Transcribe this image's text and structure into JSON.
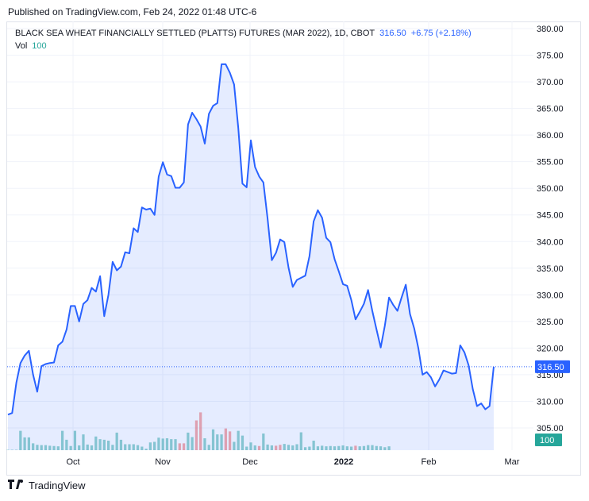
{
  "header": {
    "published": "Published on TradingView.com, Feb 24, 2022 01:48 UTC-6"
  },
  "legend": {
    "symbol": "BLACK SEA WHEAT FINANCIALLY SETTLED (PLATTS) FUTURES (MAR 2022), 1D, CBOT",
    "price": "316.50",
    "change": "+6.75 (+2.18%)",
    "vol_label": "Vol",
    "vol_value": "100"
  },
  "footer": {
    "brand": "TradingView"
  },
  "colors": {
    "line": "#2962ff",
    "area": "#2962ff",
    "vol_up": "#26a69a",
    "vol_down": "#ef5350",
    "grid": "#f0f3fa"
  },
  "chart_data": {
    "type": "line",
    "y_ticks": [
      "380.00",
      "375.00",
      "370.00",
      "365.00",
      "360.00",
      "355.00",
      "350.00",
      "345.00",
      "340.00",
      "335.00",
      "330.00",
      "325.00",
      "320.00",
      "315.00",
      "310.00",
      "305.00"
    ],
    "x_ticks": [
      "Oct",
      "Nov",
      "Dec",
      "2022",
      "Feb",
      "Mar"
    ],
    "ylim": [
      302.5,
      381.0
    ],
    "last_price_label": "316.50",
    "last_volume_label": "100",
    "price_series": [
      307.5,
      307.8,
      313.5,
      317.2,
      318.6,
      319.5,
      315.0,
      311.8,
      316.6,
      317.0,
      317.2,
      317.3,
      320.5,
      321.2,
      323.5,
      327.9,
      327.9,
      325.0,
      328.3,
      329.0,
      331.3,
      330.6,
      333.5,
      326.0,
      330.0,
      336.2,
      334.6,
      335.3,
      338.0,
      337.8,
      342.5,
      341.8,
      346.4,
      346.0,
      346.2,
      345.0,
      352.2,
      354.9,
      352.6,
      352.3,
      350.1,
      350.1,
      351.1,
      362.0,
      364.2,
      363.0,
      361.6,
      358.4,
      364.0,
      365.5,
      366.0,
      373.3,
      373.3,
      371.7,
      369.5,
      361.3,
      350.9,
      350.2,
      359.0,
      354.0,
      352.2,
      351.1,
      344.3,
      336.5,
      337.9,
      340.4,
      339.9,
      335.1,
      331.5,
      332.8,
      333.2,
      333.6,
      337.3,
      343.8,
      345.9,
      344.5,
      340.7,
      339.9,
      336.7,
      334.4,
      332.0,
      331.7,
      329.0,
      325.4,
      326.8,
      328.3,
      330.9,
      327.0,
      323.5,
      320.1,
      324.2,
      329.5,
      328.1,
      327.0,
      329.5,
      331.9,
      326.4,
      323.7,
      320.0,
      315.0,
      315.5,
      314.5,
      312.8,
      314.1,
      315.8,
      315.5,
      315.2,
      315.3,
      320.5,
      319.2,
      316.8,
      312.3,
      309.1,
      309.6,
      308.5,
      309.1,
      316.5
    ],
    "volume_scale_max": 36000,
    "volume_series": [
      [
        4,
        "up"
      ],
      [
        8,
        "up"
      ],
      [
        3,
        "up"
      ],
      [
        6500,
        "up"
      ],
      [
        4300,
        "up"
      ],
      [
        4300,
        "up"
      ],
      [
        2300,
        "up"
      ],
      [
        1800,
        "up"
      ],
      [
        1700,
        "up"
      ],
      [
        1700,
        "up"
      ],
      [
        1500,
        "up"
      ],
      [
        1400,
        "up"
      ],
      [
        1300,
        "up"
      ],
      [
        6500,
        "up"
      ],
      [
        3500,
        "up"
      ],
      [
        1400,
        "up"
      ],
      [
        6500,
        "up"
      ],
      [
        1600,
        "up"
      ],
      [
        5300,
        "up"
      ],
      [
        1900,
        "up"
      ],
      [
        1600,
        "up"
      ],
      [
        4600,
        "up"
      ],
      [
        3700,
        "up"
      ],
      [
        3500,
        "up"
      ],
      [
        3200,
        "up"
      ],
      [
        1800,
        "up"
      ],
      [
        5900,
        "up"
      ],
      [
        3500,
        "up"
      ],
      [
        2000,
        "up"
      ],
      [
        2000,
        "up"
      ],
      [
        2000,
        "up"
      ],
      [
        1700,
        "up"
      ],
      [
        1200,
        "up"
      ],
      [
        500,
        "up"
      ],
      [
        2600,
        "up"
      ],
      [
        2800,
        "up"
      ],
      [
        4200,
        "up"
      ],
      [
        3900,
        "up"
      ],
      [
        4000,
        "up"
      ],
      [
        3700,
        "up"
      ],
      [
        3700,
        "up"
      ],
      [
        2300,
        "up"
      ],
      [
        2300,
        "up"
      ],
      [
        5900,
        "up"
      ],
      [
        4400,
        "up"
      ],
      [
        10000,
        "up"
      ],
      [
        12700,
        "up"
      ],
      [
        4000,
        "up"
      ],
      [
        1800,
        "up"
      ],
      [
        7000,
        "up"
      ],
      [
        5300,
        "up"
      ],
      [
        5300,
        "up"
      ],
      [
        7300,
        "up"
      ],
      [
        6300,
        "up"
      ],
      [
        2800,
        "up"
      ],
      [
        6500,
        "up"
      ],
      [
        4900,
        "up"
      ],
      [
        1200,
        "up"
      ],
      [
        2600,
        "up"
      ],
      [
        1600,
        "up"
      ],
      [
        1400,
        "up"
      ],
      [
        5600,
        "up"
      ],
      [
        1900,
        "up"
      ],
      [
        1600,
        "up"
      ],
      [
        1500,
        "up"
      ],
      [
        1800,
        "up"
      ],
      [
        2100,
        "up"
      ],
      [
        1800,
        "up"
      ],
      [
        1600,
        "up"
      ],
      [
        2000,
        "up"
      ],
      [
        6000,
        "up"
      ],
      [
        1000,
        "up"
      ],
      [
        1200,
        "up"
      ],
      [
        3200,
        "up"
      ],
      [
        1300,
        "up"
      ],
      [
        1500,
        "up"
      ],
      [
        1300,
        "up"
      ],
      [
        1400,
        "up"
      ],
      [
        1300,
        "up"
      ],
      [
        1400,
        "up"
      ],
      [
        1600,
        "up"
      ],
      [
        1300,
        "up"
      ],
      [
        1200,
        "up"
      ],
      [
        1500,
        "up"
      ],
      [
        1300,
        "up"
      ],
      [
        1400,
        "up"
      ],
      [
        1700,
        "up"
      ],
      [
        1700,
        "up"
      ],
      [
        1400,
        "up"
      ],
      [
        1300,
        "up"
      ],
      [
        1000,
        "up"
      ],
      [
        1300,
        "up"
      ]
    ]
  }
}
